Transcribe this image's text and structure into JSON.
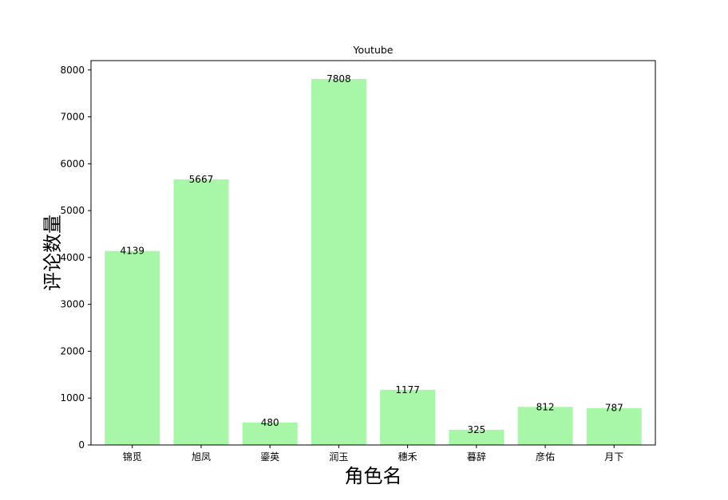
{
  "chart_data": {
    "type": "bar",
    "title": "Youtube",
    "xlabel": "角色名",
    "ylabel": "评论数量",
    "categories": [
      "锦觅",
      "旭凤",
      "鎏英",
      "润玉",
      "穗禾",
      "暮辞",
      "彦佑",
      "月下"
    ],
    "values": [
      4139,
      5667,
      480,
      7808,
      1177,
      325,
      812,
      787
    ],
    "ylim": [
      0,
      8200
    ],
    "yticks": [
      0,
      1000,
      2000,
      3000,
      4000,
      5000,
      6000,
      7000,
      8000
    ],
    "grid": false,
    "bar_color": "#a8f7a8",
    "show_value_labels": true
  }
}
